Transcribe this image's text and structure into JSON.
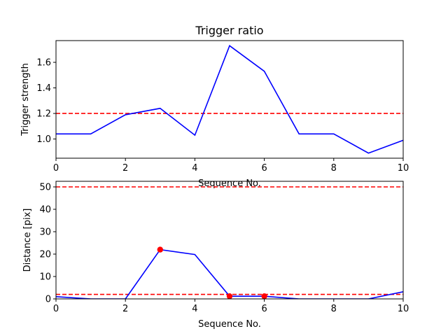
{
  "chart_data": [
    {
      "type": "line",
      "title": "Trigger ratio",
      "xlabel": "Sequence No.",
      "ylabel": "Trigger strength",
      "xlim": [
        0,
        10
      ],
      "ylim": [
        0.85,
        1.77
      ],
      "xticks": [
        0,
        2,
        4,
        6,
        8,
        10
      ],
      "yticks": [
        1.0,
        1.2,
        1.4,
        1.6
      ],
      "ytick_labels": [
        "1.0",
        "1.2",
        "1.4",
        "1.6"
      ],
      "grid": false,
      "series": [
        {
          "color": "#0000ff",
          "x": [
            0,
            1,
            2,
            3,
            4,
            5,
            6,
            7,
            8,
            9,
            10
          ],
          "y": [
            1.04,
            1.04,
            1.19,
            1.24,
            1.03,
            1.73,
            1.53,
            1.04,
            1.04,
            0.89,
            0.99
          ]
        }
      ],
      "hlines": [
        {
          "y": 1.2,
          "color": "#ff0000",
          "style": "dashed"
        }
      ]
    },
    {
      "type": "line",
      "title": "",
      "xlabel": "Sequence No.",
      "ylabel": "Distance [pix]",
      "xlim": [
        0,
        10
      ],
      "ylim": [
        0,
        52.5
      ],
      "xticks": [
        0,
        2,
        4,
        6,
        8,
        10
      ],
      "yticks": [
        0,
        10,
        20,
        30,
        40,
        50
      ],
      "grid": false,
      "series": [
        {
          "color": "#0000ff",
          "x": [
            0,
            1,
            2,
            3,
            4,
            5,
            6,
            7,
            8,
            9,
            10
          ],
          "y": [
            1.0,
            0.0,
            0.0,
            22.0,
            19.8,
            1.2,
            1.2,
            0.0,
            0.0,
            0.0,
            3.2
          ]
        }
      ],
      "markers": {
        "color": "#ff0000",
        "x": [
          3,
          5,
          6
        ],
        "y": [
          22.0,
          1.2,
          1.2
        ]
      },
      "hlines": [
        {
          "y": 50,
          "color": "#ff0000",
          "style": "dashed"
        },
        {
          "y": 2,
          "color": "#ff0000",
          "style": "dashed"
        }
      ]
    }
  ]
}
